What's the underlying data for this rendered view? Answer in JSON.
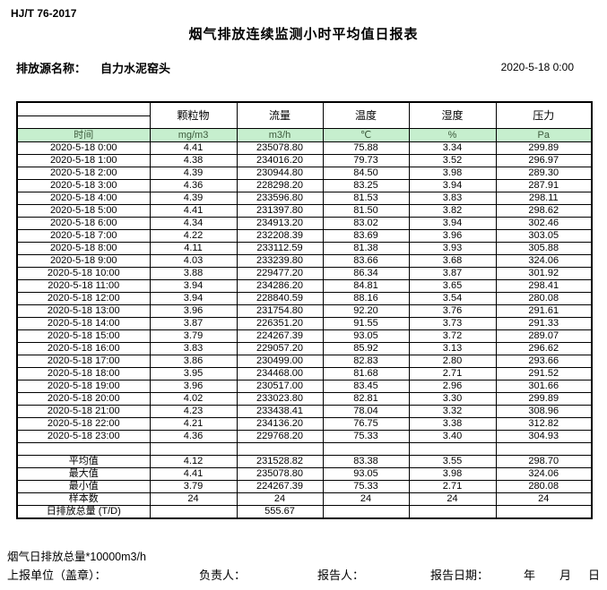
{
  "header": {
    "standard_code": "HJ/T 76-2017",
    "title": "烟气排放连续监测小时平均值日报表",
    "source_label": "排放源名称：",
    "source_name": "自力水泥窑头",
    "datetime": "2020-5-18 0:00"
  },
  "table": {
    "time_header": "时间",
    "columns": [
      {
        "name": "颗粒物",
        "unit": "mg/m3"
      },
      {
        "name": "流量",
        "unit": "m3/h"
      },
      {
        "name": "温度",
        "unit": "℃"
      },
      {
        "name": "湿度",
        "unit": "%"
      },
      {
        "name": "压力",
        "unit": "Pa"
      }
    ],
    "rows": [
      {
        "time": "2020-5-18 0:00",
        "values": [
          "4.41",
          "235078.80",
          "75.88",
          "3.34",
          "299.89"
        ]
      },
      {
        "time": "2020-5-18 1:00",
        "values": [
          "4.38",
          "234016.20",
          "79.73",
          "3.52",
          "296.97"
        ]
      },
      {
        "time": "2020-5-18 2:00",
        "values": [
          "4.39",
          "230944.80",
          "84.50",
          "3.98",
          "289.30"
        ]
      },
      {
        "time": "2020-5-18 3:00",
        "values": [
          "4.36",
          "228298.20",
          "83.25",
          "3.94",
          "287.91"
        ]
      },
      {
        "time": "2020-5-18 4:00",
        "values": [
          "4.39",
          "233596.80",
          "81.53",
          "3.83",
          "298.11"
        ]
      },
      {
        "time": "2020-5-18 5:00",
        "values": [
          "4.41",
          "231397.80",
          "81.50",
          "3.82",
          "298.62"
        ]
      },
      {
        "time": "2020-5-18 6:00",
        "values": [
          "4.34",
          "234913.20",
          "83.02",
          "3.94",
          "302.46"
        ]
      },
      {
        "time": "2020-5-18 7:00",
        "values": [
          "4.22",
          "232208.39",
          "83.69",
          "3.96",
          "303.05"
        ]
      },
      {
        "time": "2020-5-18 8:00",
        "values": [
          "4.11",
          "233112.59",
          "81.38",
          "3.93",
          "305.88"
        ]
      },
      {
        "time": "2020-5-18 9:00",
        "values": [
          "4.03",
          "233239.80",
          "83.66",
          "3.68",
          "324.06"
        ]
      },
      {
        "time": "2020-5-18 10:00",
        "values": [
          "3.88",
          "229477.20",
          "86.34",
          "3.87",
          "301.92"
        ]
      },
      {
        "time": "2020-5-18 11:00",
        "values": [
          "3.94",
          "234286.20",
          "84.81",
          "3.65",
          "298.41"
        ]
      },
      {
        "time": "2020-5-18 12:00",
        "values": [
          "3.94",
          "228840.59",
          "88.16",
          "3.54",
          "280.08"
        ]
      },
      {
        "time": "2020-5-18 13:00",
        "values": [
          "3.96",
          "231754.80",
          "92.20",
          "3.76",
          "291.61"
        ]
      },
      {
        "time": "2020-5-18 14:00",
        "values": [
          "3.87",
          "226351.20",
          "91.55",
          "3.73",
          "291.33"
        ]
      },
      {
        "time": "2020-5-18 15:00",
        "values": [
          "3.79",
          "224267.39",
          "93.05",
          "3.72",
          "289.07"
        ]
      },
      {
        "time": "2020-5-18 16:00",
        "values": [
          "3.83",
          "229057.20",
          "85.92",
          "3.13",
          "296.62"
        ]
      },
      {
        "time": "2020-5-18 17:00",
        "values": [
          "3.86",
          "230499.00",
          "82.83",
          "2.80",
          "293.66"
        ]
      },
      {
        "time": "2020-5-18 18:00",
        "values": [
          "3.95",
          "234468.00",
          "81.68",
          "2.71",
          "291.52"
        ]
      },
      {
        "time": "2020-5-18 19:00",
        "values": [
          "3.96",
          "230517.00",
          "83.45",
          "2.96",
          "301.66"
        ]
      },
      {
        "time": "2020-5-18 20:00",
        "values": [
          "4.02",
          "233023.80",
          "82.81",
          "3.30",
          "299.89"
        ]
      },
      {
        "time": "2020-5-18 21:00",
        "values": [
          "4.23",
          "233438.41",
          "78.04",
          "3.32",
          "308.96"
        ]
      },
      {
        "time": "2020-5-18 22:00",
        "values": [
          "4.21",
          "234136.20",
          "76.75",
          "3.38",
          "312.82"
        ]
      },
      {
        "time": "2020-5-18 23:00",
        "values": [
          "4.36",
          "229768.20",
          "75.33",
          "3.40",
          "304.93"
        ]
      }
    ],
    "summary": [
      {
        "label": "平均值",
        "values": [
          "4.12",
          "231528.82",
          "83.38",
          "3.55",
          "298.70"
        ]
      },
      {
        "label": "最大值",
        "values": [
          "4.41",
          "235078.80",
          "93.05",
          "3.98",
          "324.06"
        ]
      },
      {
        "label": "最小值",
        "values": [
          "3.79",
          "224267.39",
          "75.33",
          "2.71",
          "280.08"
        ]
      },
      {
        "label": "样本数",
        "values": [
          "24",
          "24",
          "24",
          "24",
          "24"
        ]
      },
      {
        "label": "日排放总量 (T/D)",
        "values": [
          "",
          "555.67",
          "",
          "",
          ""
        ],
        "align": "left"
      }
    ]
  },
  "footer": {
    "note": "烟气日排放总量*10000m3/h",
    "unit_label": "上报单位（盖章）：",
    "responsible_label": "负责人：",
    "reporter_label": "报告人：",
    "report_date_label": "报告日期：",
    "year_label": "年",
    "month_label": "月",
    "day_label": "日"
  },
  "colors": {
    "header_green_bg": "#c6efce",
    "header_green_text": "#3c5a3c",
    "border": "#000000"
  }
}
